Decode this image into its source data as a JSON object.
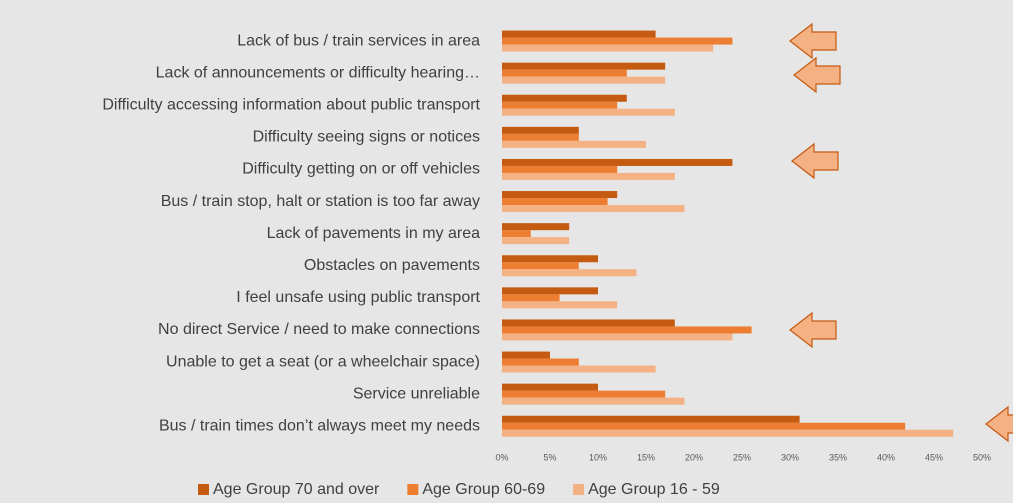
{
  "chart_data": {
    "type": "barh",
    "categories": [
      "Lack of bus / train services in area",
      "Lack of announcements or difficulty hearing…",
      "Difficulty accessing information about public transport",
      "Difficulty seeing signs or notices",
      "Difficulty getting on or off vehicles",
      "Bus / train stop, halt or station is too far away",
      "Lack of pavements in my area",
      "Obstacles on pavements",
      "I feel unsafe using public transport",
      "No direct Service / need to make connections",
      "Unable to get a seat (or a wheelchair space)",
      "Service unreliable",
      "Bus / train times don’t always meet my needs"
    ],
    "series": [
      {
        "name": "Age Group 70 and over",
        "color": "#c55a11",
        "values": [
          16,
          17,
          13,
          8,
          24,
          12,
          7,
          10,
          10,
          18,
          5,
          10,
          31
        ]
      },
      {
        "name": "Age Group 60-69",
        "color": "#ed7d31",
        "values": [
          24,
          13,
          12,
          8,
          12,
          11,
          3,
          8,
          6,
          26,
          8,
          17,
          42
        ]
      },
      {
        "name": "Age Group 16 - 59",
        "color": "#f4b183",
        "values": [
          22,
          17,
          18,
          15,
          18,
          19,
          7,
          14,
          12,
          24,
          16,
          19,
          47
        ]
      }
    ],
    "xlim": [
      0,
      50
    ],
    "xticks": [
      {
        "value": 0,
        "label": "0%"
      },
      {
        "value": 5,
        "label": "5%"
      },
      {
        "value": 10,
        "label": "10%"
      },
      {
        "value": 15,
        "label": "15%"
      },
      {
        "value": 20,
        "label": "20%"
      },
      {
        "value": 25,
        "label": "25%"
      },
      {
        "value": 30,
        "label": "30%"
      },
      {
        "value": 35,
        "label": "35%"
      },
      {
        "value": 40,
        "label": "40%"
      },
      {
        "value": 45,
        "label": "45%"
      },
      {
        "value": 50,
        "label": "50%"
      }
    ],
    "legend": "bottom"
  }
}
